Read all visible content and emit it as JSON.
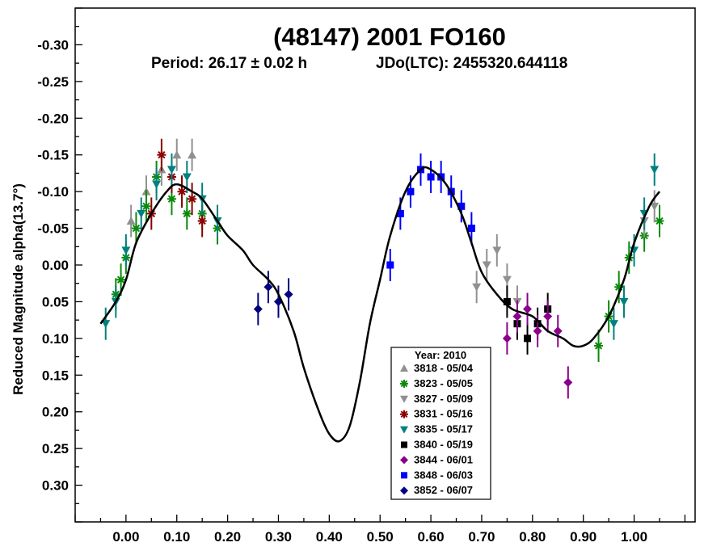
{
  "chart_data": {
    "type": "scatter",
    "title": "(48147) 2001 FO160",
    "period_text": "Period: 26.17 ± 0.02 h",
    "jdo_text": "JDo(LTC): 2455320.644118",
    "xlabel": "",
    "ylabel": "Reduced Magnitude alpha(13.7°)",
    "xlim": [
      -0.1,
      1.12
    ],
    "ylim": [
      0.35,
      -0.35
    ],
    "x_ticks": [
      "0.00",
      "0.10",
      "0.20",
      "0.30",
      "0.40",
      "0.50",
      "0.60",
      "0.70",
      "0.80",
      "0.90",
      "1.00"
    ],
    "y_ticks": [
      "-0.30",
      "-0.25",
      "-0.20",
      "-0.15",
      "-0.10",
      "-0.05",
      "0.00",
      "0.05",
      "0.10",
      "0.15",
      "0.20",
      "0.25",
      "0.30"
    ],
    "fit_curve": {
      "x": [
        -0.05,
        -0.02,
        0.0,
        0.02,
        0.05,
        0.08,
        0.1,
        0.13,
        0.15,
        0.18,
        0.2,
        0.23,
        0.25,
        0.28,
        0.3,
        0.33,
        0.35,
        0.38,
        0.4,
        0.42,
        0.44,
        0.46,
        0.48,
        0.5,
        0.52,
        0.55,
        0.58,
        0.6,
        0.63,
        0.66,
        0.68,
        0.7,
        0.73,
        0.76,
        0.8,
        0.83,
        0.86,
        0.88,
        0.9,
        0.92,
        0.95,
        0.98,
        1.0,
        1.03,
        1.05
      ],
      "y": [
        0.08,
        0.05,
        0.02,
        -0.03,
        -0.07,
        -0.1,
        -0.11,
        -0.1,
        -0.09,
        -0.06,
        -0.04,
        -0.02,
        0.0,
        0.02,
        0.04,
        0.09,
        0.14,
        0.2,
        0.23,
        0.24,
        0.22,
        0.16,
        0.08,
        0.02,
        -0.04,
        -0.1,
        -0.13,
        -0.13,
        -0.11,
        -0.07,
        -0.03,
        0.01,
        0.04,
        0.06,
        0.07,
        0.09,
        0.1,
        0.11,
        0.11,
        0.1,
        0.07,
        0.02,
        -0.03,
        -0.08,
        -0.1
      ]
    },
    "legend": {
      "title": "Year: 2010",
      "position": "bottom-center",
      "entries": [
        {
          "label": "3818 - 05/04",
          "color": "#909090",
          "marker": "triangle-up"
        },
        {
          "label": "3823 - 05/05",
          "color": "#0a8a0a",
          "marker": "asterisk"
        },
        {
          "label": "3827 - 05/09",
          "color": "#909090",
          "marker": "triangle-down"
        },
        {
          "label": "3831 - 05/16",
          "color": "#8b0000",
          "marker": "asterisk"
        },
        {
          "label": "3835 - 05/17",
          "color": "#008080",
          "marker": "triangle-down"
        },
        {
          "label": "3840 - 05/19",
          "color": "#000000",
          "marker": "square"
        },
        {
          "label": "3844 - 06/01",
          "color": "#8b008b",
          "marker": "diamond"
        },
        {
          "label": "3848 - 06/03",
          "color": "#0000ff",
          "marker": "square"
        },
        {
          "label": "3852 - 06/07",
          "color": "#000080",
          "marker": "diamond"
        }
      ]
    },
    "series": [
      {
        "name": "3818 - 05/04",
        "color": "#909090",
        "marker": "triangle-up",
        "x": [
          0.01,
          0.04,
          0.07,
          0.1,
          0.13
        ],
        "y": [
          -0.06,
          -0.1,
          -0.13,
          -0.15,
          -0.15
        ]
      },
      {
        "name": "3823 - 05/05",
        "color": "#0a8a0a",
        "marker": "asterisk",
        "x": [
          -0.02,
          -0.01,
          0.0,
          0.02,
          0.04,
          0.06,
          0.09,
          0.12,
          0.15,
          0.18,
          0.93,
          0.95,
          0.97,
          0.99,
          1.02,
          1.05
        ],
        "y": [
          0.04,
          0.02,
          -0.01,
          -0.05,
          -0.08,
          -0.12,
          -0.09,
          -0.07,
          -0.07,
          -0.05,
          0.11,
          0.07,
          0.03,
          -0.01,
          -0.04,
          -0.06
        ]
      },
      {
        "name": "3827 - 05/09",
        "color": "#909090",
        "marker": "triangle-down",
        "x": [
          0.69,
          0.71,
          0.73,
          0.75,
          0.77,
          1.02,
          1.04
        ],
        "y": [
          0.03,
          0.0,
          -0.02,
          0.02,
          0.05,
          -0.06,
          -0.08
        ]
      },
      {
        "name": "3831 - 05/16",
        "color": "#8b0000",
        "marker": "asterisk",
        "x": [
          0.05,
          0.07,
          0.09,
          0.11,
          0.13,
          0.15
        ],
        "y": [
          -0.07,
          -0.15,
          -0.12,
          -0.1,
          -0.09,
          -0.06
        ]
      },
      {
        "name": "3835 - 05/17",
        "color": "#008080",
        "marker": "triangle-down",
        "x": [
          -0.04,
          -0.02,
          0.0,
          0.03,
          0.06,
          0.09,
          0.12,
          0.15,
          0.18,
          0.96,
          0.98,
          1.0,
          1.02,
          1.04
        ],
        "y": [
          0.08,
          0.05,
          -0.02,
          -0.07,
          -0.11,
          -0.13,
          -0.12,
          -0.09,
          -0.06,
          0.08,
          0.05,
          -0.02,
          -0.07,
          -0.13
        ]
      },
      {
        "name": "3840 - 05/19",
        "color": "#000000",
        "marker": "square",
        "x": [
          0.75,
          0.77,
          0.79,
          0.81,
          0.83
        ],
        "y": [
          0.05,
          0.08,
          0.1,
          0.08,
          0.06
        ]
      },
      {
        "name": "3844 - 06/01",
        "color": "#8b008b",
        "marker": "diamond",
        "x": [
          0.75,
          0.77,
          0.79,
          0.81,
          0.83,
          0.85,
          0.87
        ],
        "y": [
          0.1,
          0.07,
          0.06,
          0.09,
          0.07,
          0.09,
          0.16
        ]
      },
      {
        "name": "3848 - 06/03",
        "color": "#0000ff",
        "marker": "square",
        "x": [
          0.52,
          0.54,
          0.56,
          0.58,
          0.6,
          0.62,
          0.64,
          0.66,
          0.68
        ],
        "y": [
          0.0,
          -0.07,
          -0.1,
          -0.13,
          -0.12,
          -0.12,
          -0.1,
          -0.08,
          -0.05
        ]
      },
      {
        "name": "3852 - 06/07",
        "color": "#000080",
        "marker": "diamond",
        "x": [
          0.26,
          0.28,
          0.3,
          0.32
        ],
        "y": [
          0.06,
          0.03,
          0.05,
          0.04
        ]
      }
    ]
  }
}
